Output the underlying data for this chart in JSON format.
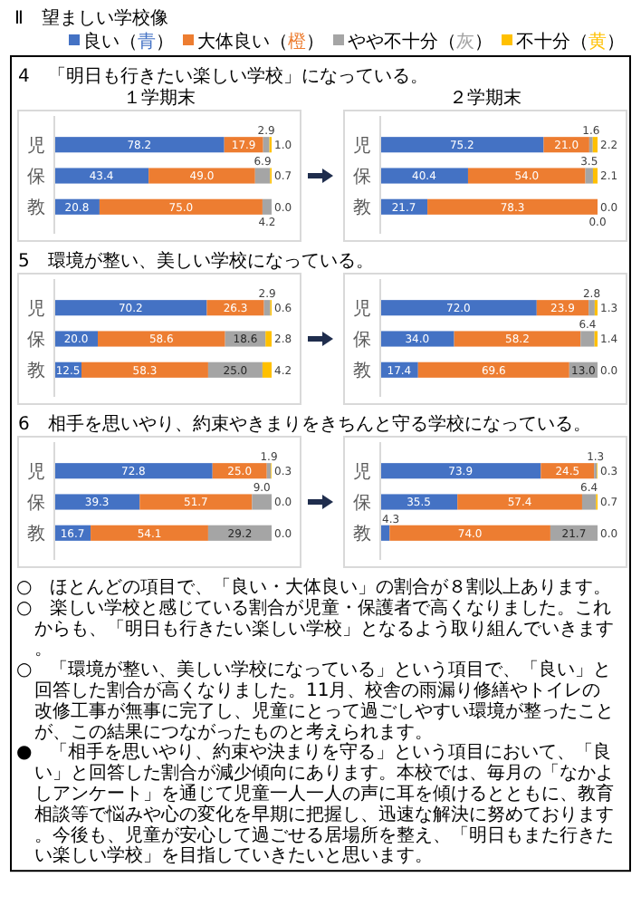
{
  "chart_data": [
    {
      "type": "bar",
      "orientation": "horizontal",
      "stacked": true,
      "legend": "top right",
      "title": "4　「明日も行きたい楽しい学校」になっている。",
      "subtitle": "１学期末",
      "annotations": [
        "Ⅱ　望ましい学校像"
      ],
      "categories": [
        "児",
        "保",
        "教"
      ],
      "series": [
        {
          "name": "良い（青）",
          "color": "#4472c4",
          "values": [
            78.2,
            43.4,
            20.8
          ],
          "value_labels": [
            "78.2",
            "43.4",
            "20.8"
          ]
        },
        {
          "name": "大体良い（橙）",
          "color": "#ed7d31",
          "values": [
            17.9,
            49.0,
            75.0
          ],
          "value_labels": [
            "17.9",
            "49.0",
            "75.0"
          ]
        },
        {
          "name": "やや不十分（灰）",
          "color": "#a5a5a5",
          "values": [
            2.9,
            6.9,
            4.2
          ],
          "value_labels": [
            "2.9",
            "6.9",
            "4.2"
          ]
        },
        {
          "name": "不十分（黄）",
          "color": "#ffc000",
          "values": [
            1.0,
            0.7,
            0.0
          ],
          "value_labels": [
            "1.0",
            "0.7",
            "0.0"
          ]
        }
      ]
    },
    {
      "type": "bar",
      "orientation": "horizontal",
      "stacked": true,
      "subtitle": "２学期末",
      "categories": [
        "児",
        "保",
        "教"
      ],
      "series": [
        {
          "color": "#4472c4",
          "values": [
            75.2,
            40.4,
            21.7
          ],
          "value_labels": [
            "75.2",
            "40.4",
            "21.7"
          ]
        },
        {
          "color": "#ed7d31",
          "values": [
            21.0,
            54.0,
            78.3
          ],
          "value_labels": [
            "21.0",
            "54.0",
            "78.3"
          ]
        },
        {
          "color": "#a5a5a5",
          "values": [
            1.6,
            3.5,
            0.0
          ],
          "value_labels": [
            "1.6",
            "3.5",
            "0.0"
          ]
        },
        {
          "color": "#ffc000",
          "values": [
            2.2,
            2.1,
            0.0
          ],
          "value_labels": [
            "2.2",
            "2.1",
            "0.0"
          ]
        }
      ]
    },
    {
      "type": "bar",
      "orientation": "horizontal",
      "stacked": true,
      "title": "5　環境が整い、美しい学校になっている。",
      "categories": [
        "児",
        "保",
        "教"
      ],
      "series": [
        {
          "color": "#4472c4",
          "values": [
            70.2,
            20.0,
            12.5
          ],
          "value_labels": [
            "70.2",
            "20.0",
            "12.5"
          ]
        },
        {
          "color": "#ed7d31",
          "values": [
            26.3,
            58.6,
            58.3
          ],
          "value_labels": [
            "26.3",
            "58.6",
            "58.3"
          ]
        },
        {
          "color": "#a5a5a5",
          "values": [
            2.9,
            18.6,
            25.0
          ],
          "value_labels": [
            "2.9",
            "18.6",
            "25.0"
          ]
        },
        {
          "color": "#ffc000",
          "values": [
            0.6,
            2.8,
            4.2
          ],
          "value_labels": [
            "0.6",
            "2.8",
            "4.2"
          ]
        }
      ]
    },
    {
      "type": "bar",
      "orientation": "horizontal",
      "stacked": true,
      "categories": [
        "児",
        "保",
        "教"
      ],
      "series": [
        {
          "color": "#4472c4",
          "values": [
            72.0,
            34.0,
            17.4
          ],
          "value_labels": [
            "72.0",
            "34.0",
            "17.4"
          ]
        },
        {
          "color": "#ed7d31",
          "values": [
            23.9,
            58.2,
            69.6
          ],
          "value_labels": [
            "23.9",
            "58.2",
            "69.6"
          ]
        },
        {
          "color": "#a5a5a5",
          "values": [
            2.8,
            6.4,
            13.0
          ],
          "value_labels": [
            "2.8",
            "6.4",
            "13.0"
          ]
        },
        {
          "color": "#ffc000",
          "values": [
            1.3,
            1.4,
            0.0
          ],
          "value_labels": [
            "1.3",
            "1.4",
            "0.0"
          ]
        }
      ]
    },
    {
      "type": "bar",
      "orientation": "horizontal",
      "stacked": true,
      "title": "6　相手を思いやり、約束やきまりをきちんと守る学校になっている。",
      "categories": [
        "児",
        "保",
        "教"
      ],
      "series": [
        {
          "color": "#4472c4",
          "values": [
            72.8,
            39.3,
            16.7
          ],
          "value_labels": [
            "72.8",
            "39.3",
            "16.7"
          ]
        },
        {
          "color": "#ed7d31",
          "values": [
            25.0,
            51.7,
            54.1
          ],
          "value_labels": [
            "25.0",
            "51.7",
            "54.1"
          ]
        },
        {
          "color": "#a5a5a5",
          "values": [
            1.9,
            9.0,
            29.2
          ],
          "value_labels": [
            "1.9",
            "9.0",
            "29.2"
          ]
        },
        {
          "color": "#ffc000",
          "values": [
            0.3,
            0.0,
            0.0
          ],
          "value_labels": [
            "0.3",
            "0.0",
            "0.0"
          ]
        }
      ]
    },
    {
      "type": "bar",
      "orientation": "horizontal",
      "stacked": true,
      "categories": [
        "児",
        "保",
        "教"
      ],
      "series": [
        {
          "color": "#4472c4",
          "values": [
            73.9,
            35.5,
            4.3
          ],
          "value_labels": [
            "73.9",
            "35.5",
            "4.3"
          ]
        },
        {
          "color": "#ed7d31",
          "values": [
            24.5,
            57.4,
            74.0
          ],
          "value_labels": [
            "24.5",
            "57.4",
            "74.0"
          ]
        },
        {
          "color": "#a5a5a5",
          "values": [
            1.3,
            6.4,
            21.7
          ],
          "value_labels": [
            "1.3",
            "6.4",
            "21.7"
          ]
        },
        {
          "color": "#ffc000",
          "values": [
            0.3,
            0.7,
            0.0
          ],
          "value_labels": [
            "0.3",
            "0.7",
            "0.0"
          ]
        }
      ],
      "annotations": [
        "○　ほとんどの項目で、「良い・大体良い」の割合が８割以上あります。",
        "○　楽しい学校と感じている割合が児童・保護者で高くなりました。これからも、「明日も行きたい楽しい学校」となるよう取り組んでいきます。",
        "○　「環境が整い、美しい学校になっている」という項目で、「良い」と回答した割合が高くなりました。11月、校舎の雨漏り修繕やトイレの改修工事が無事に完了し、児童にとって過ごしやすい環境が整ったことが、この結果につながったものと考えられます。",
        "●　「相手を思いやり、約束や決まりを守る」という項目において、「良い」と回答した割合が減少傾向にあります。本校では、毎月の「なかよしアンケート」を通じて児童一人一人の声に耳を傾けるとともに、教育相談等で悩みや心の変化を早期に把握し、迅速な解決に努めております。今後も、児童が安心して過ごせる居場所を整え、「明日もまた行きたい楽しい学校」を目指していきたいと思います。"
      ]
    }
  ]
}
